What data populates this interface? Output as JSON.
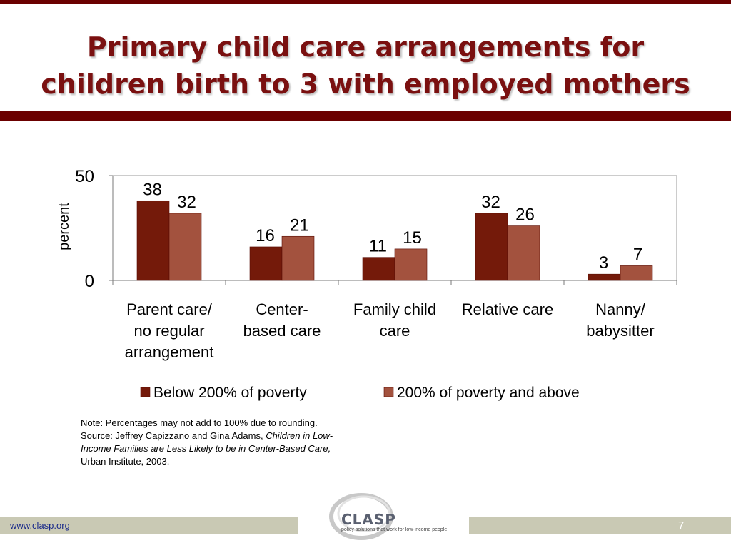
{
  "slide": {
    "title_line1": "Primary child care arrangements for",
    "title_line2": "children birth to 3 with employed mothers",
    "note_part1": "Note: Percentages may not add to 100% due to rounding. Source: Jeffrey Capizzano and Gina Adams, ",
    "note_italic": "Children in Low-Income Families are Less Likely to be in Center-Based Care,",
    "note_part2": " Urban Institute, 2003.",
    "footer_url": "www.clasp.org",
    "page_number": "7",
    "logo_word": "CLASP",
    "logo_tagline": "policy solutions that work for low-income people"
  },
  "chart_data": {
    "type": "bar",
    "title": "",
    "xlabel": "",
    "ylabel": "percent",
    "ylim": [
      0,
      50
    ],
    "yticks": [
      "0",
      "50"
    ],
    "grid": false,
    "legend_position": "bottom",
    "categories": [
      [
        "Parent care/",
        "no regular",
        "arrangement"
      ],
      [
        "Center-",
        "based care"
      ],
      [
        "Family child",
        "care"
      ],
      [
        "Relative care"
      ],
      [
        "Nanny/",
        "babysitter"
      ]
    ],
    "series": [
      {
        "name": "Below 200% of poverty",
        "color": "#741a0a",
        "values": [
          38,
          16,
          11,
          32,
          3
        ]
      },
      {
        "name": "200% of poverty and above",
        "color": "#a3523e",
        "values": [
          32,
          21,
          15,
          26,
          7
        ]
      }
    ]
  }
}
